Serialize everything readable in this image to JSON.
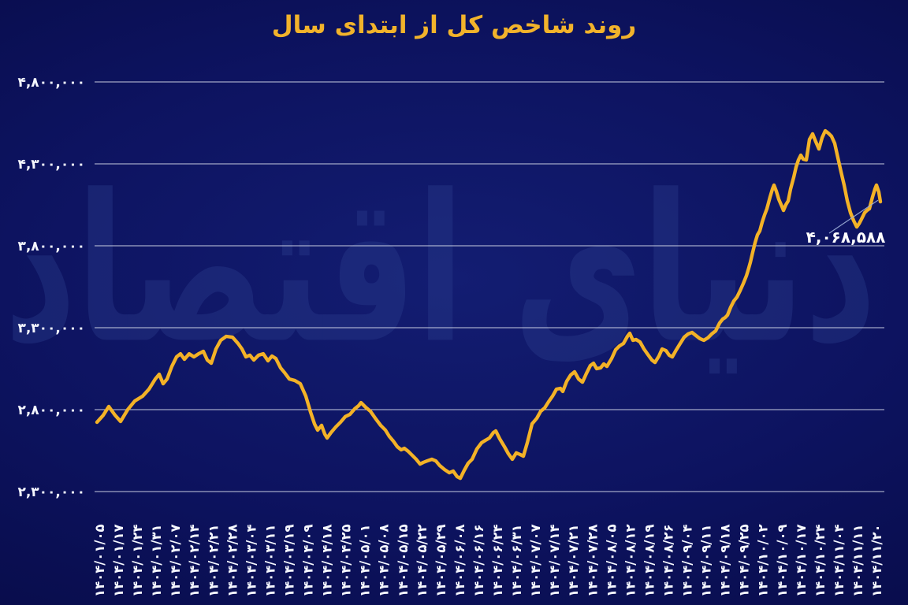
{
  "watermark": {
    "text": "دنیای اقتصاد"
  },
  "chart_data": {
    "type": "line",
    "title": "روند شاخص کل از ابتدای سال",
    "title_color": "#f2b32b",
    "background_color": "#0d1360",
    "line_color": "#f3b227",
    "grid_color": "#e8ecf5",
    "axis_label_color": "#f5f7ff",
    "watermark_color": "#2c3e8e",
    "grid": true,
    "legend_position": "none",
    "xlabel": "",
    "ylabel": "",
    "y_axis": {
      "min": 2300000,
      "max": 4800000,
      "tick_step": 500000,
      "ticks": [
        {
          "label": "۴,۸۰۰,۰۰۰",
          "value": 4800000
        },
        {
          "label": "۴,۳۰۰,۰۰۰",
          "value": 4300000
        },
        {
          "label": "۳,۸۰۰,۰۰۰",
          "value": 3800000
        },
        {
          "label": "۳,۳۰۰,۰۰۰",
          "value": 3300000
        },
        {
          "label": "۲,۸۰۰,۰۰۰",
          "value": 2800000
        },
        {
          "label": "۲,۳۰۰,۰۰۰",
          "value": 2300000
        }
      ]
    },
    "x_axis": {
      "tick_labels": [
        "۱۴۰۴/۰۱/۰۵",
        "۱۴۰۴/۰۱/۱۷",
        "۱۴۰۴/۰۱/۲۴",
        "۱۴۰۴/۰۱/۳۱",
        "۱۴۰۴/۰۲/۰۷",
        "۱۴۰۴/۰۲/۱۴",
        "۱۴۰۴/۰۲/۲۱",
        "۱۴۰۴/۰۲/۲۸",
        "۱۴۰۴/۰۳/۰۴",
        "۱۴۰۴/۰۳/۱۱",
        "۱۴۰۴/۰۳/۱۹",
        "۱۴۰۴/۰۴/۰۹",
        "۱۴۰۴/۰۴/۱۸",
        "۱۴۰۴/۰۴/۲۵",
        "۱۴۰۴/۰۵/۰۱",
        "۱۴۰۴/۰۵/۰۸",
        "۱۴۰۴/۰۵/۱۵",
        "۱۴۰۴/۰۵/۲۲",
        "۱۴۰۴/۰۵/۲۹",
        "۱۴۰۴/۰۶/۰۸",
        "۱۴۰۴/۰۶/۱۶",
        "۱۴۰۴/۰۶/۲۴",
        "۱۴۰۴/۰۶/۳۱",
        "۱۴۰۴/۰۷/۰۷",
        "۱۴۰۴/۰۷/۱۴",
        "۱۴۰۴/۰۷/۲۱",
        "۱۴۰۴/۰۷/۲۸",
        "۱۴۰۴/۰۸/۰۵",
        "۱۴۰۴/۰۸/۱۲",
        "۱۴۰۴/۰۸/۱۹",
        "۱۴۰۴/۰۸/۲۶",
        "۱۴۰۴/۰۹/۰۴",
        "۱۴۰۴/۰۹/۱۱",
        "۱۴۰۴/۰۹/۱۸",
        "۱۴۰۴/۰۹/۲۵",
        "۱۴۰۴/۱۰/۰۲",
        "۱۴۰۴/۱۰/۰۹",
        "۱۴۰۴/۱۰/۱۷",
        "۱۴۰۴/۱۰/۲۴",
        "۱۴۰۴/۱۱/۰۴",
        "۱۴۰۴/۱۱/۱۱",
        "۱۴۰۴/۱۱/۲۰"
      ]
    },
    "annotation": {
      "label": "۴,۰۶۸,۵۸۸",
      "value": 4068588
    },
    "series": [
      {
        "name": "شاخص کل",
        "points": [
          [
            0.003,
            2723000
          ],
          [
            0.011,
            2766000
          ],
          [
            0.018,
            2819000
          ],
          [
            0.026,
            2766000
          ],
          [
            0.033,
            2728000
          ],
          [
            0.042,
            2800000
          ],
          [
            0.051,
            2853000
          ],
          [
            0.061,
            2882000
          ],
          [
            0.069,
            2925000
          ],
          [
            0.077,
            2987000
          ],
          [
            0.082,
            3016000
          ],
          [
            0.087,
            2958000
          ],
          [
            0.092,
            2987000
          ],
          [
            0.098,
            3064000
          ],
          [
            0.104,
            3122000
          ],
          [
            0.109,
            3141000
          ],
          [
            0.114,
            3107000
          ],
          [
            0.12,
            3141000
          ],
          [
            0.126,
            3122000
          ],
          [
            0.132,
            3141000
          ],
          [
            0.138,
            3156000
          ],
          [
            0.143,
            3103000
          ],
          [
            0.148,
            3083000
          ],
          [
            0.154,
            3170000
          ],
          [
            0.16,
            3223000
          ],
          [
            0.167,
            3247000
          ],
          [
            0.175,
            3242000
          ],
          [
            0.182,
            3204000
          ],
          [
            0.187,
            3170000
          ],
          [
            0.192,
            3122000
          ],
          [
            0.197,
            3132000
          ],
          [
            0.202,
            3103000
          ],
          [
            0.208,
            3132000
          ],
          [
            0.214,
            3141000
          ],
          [
            0.22,
            3098000
          ],
          [
            0.225,
            3127000
          ],
          [
            0.23,
            3112000
          ],
          [
            0.236,
            3055000
          ],
          [
            0.241,
            3026000
          ],
          [
            0.247,
            2987000
          ],
          [
            0.254,
            2978000
          ],
          [
            0.261,
            2958000
          ],
          [
            0.268,
            2882000
          ],
          [
            0.274,
            2785000
          ],
          [
            0.279,
            2713000
          ],
          [
            0.283,
            2675000
          ],
          [
            0.288,
            2704000
          ],
          [
            0.292,
            2651000
          ],
          [
            0.295,
            2627000
          ],
          [
            0.3,
            2660000
          ],
          [
            0.306,
            2694000
          ],
          [
            0.312,
            2723000
          ],
          [
            0.318,
            2757000
          ],
          [
            0.324,
            2771000
          ],
          [
            0.33,
            2805000
          ],
          [
            0.335,
            2824000
          ],
          [
            0.338,
            2843000
          ],
          [
            0.344,
            2814000
          ],
          [
            0.35,
            2790000
          ],
          [
            0.357,
            2742000
          ],
          [
            0.363,
            2704000
          ],
          [
            0.369,
            2675000
          ],
          [
            0.374,
            2636000
          ],
          [
            0.379,
            2608000
          ],
          [
            0.384,
            2574000
          ],
          [
            0.389,
            2555000
          ],
          [
            0.393,
            2564000
          ],
          [
            0.398,
            2545000
          ],
          [
            0.403,
            2521000
          ],
          [
            0.408,
            2497000
          ],
          [
            0.413,
            2468000
          ],
          [
            0.417,
            2478000
          ],
          [
            0.422,
            2487000
          ],
          [
            0.428,
            2497000
          ],
          [
            0.433,
            2487000
          ],
          [
            0.438,
            2458000
          ],
          [
            0.444,
            2434000
          ],
          [
            0.45,
            2415000
          ],
          [
            0.455,
            2425000
          ],
          [
            0.46,
            2391000
          ],
          [
            0.464,
            2381000
          ],
          [
            0.469,
            2430000
          ],
          [
            0.474,
            2473000
          ],
          [
            0.479,
            2497000
          ],
          [
            0.485,
            2560000
          ],
          [
            0.491,
            2598000
          ],
          [
            0.496,
            2613000
          ],
          [
            0.501,
            2627000
          ],
          [
            0.506,
            2660000
          ],
          [
            0.509,
            2670000
          ],
          [
            0.514,
            2622000
          ],
          [
            0.52,
            2574000
          ],
          [
            0.525,
            2531000
          ],
          [
            0.53,
            2497000
          ],
          [
            0.535,
            2536000
          ],
          [
            0.54,
            2526000
          ],
          [
            0.544,
            2516000
          ],
          [
            0.549,
            2598000
          ],
          [
            0.555,
            2713000
          ],
          [
            0.561,
            2747000
          ],
          [
            0.566,
            2790000
          ],
          [
            0.571,
            2810000
          ],
          [
            0.576,
            2848000
          ],
          [
            0.581,
            2882000
          ],
          [
            0.586,
            2925000
          ],
          [
            0.591,
            2930000
          ],
          [
            0.594,
            2911000
          ],
          [
            0.599,
            2973000
          ],
          [
            0.604,
            3011000
          ],
          [
            0.609,
            3031000
          ],
          [
            0.614,
            2987000
          ],
          [
            0.619,
            2968000
          ],
          [
            0.624,
            3021000
          ],
          [
            0.629,
            3069000
          ],
          [
            0.633,
            3083000
          ],
          [
            0.637,
            3050000
          ],
          [
            0.642,
            3055000
          ],
          [
            0.646,
            3079000
          ],
          [
            0.65,
            3064000
          ],
          [
            0.656,
            3112000
          ],
          [
            0.661,
            3165000
          ],
          [
            0.666,
            3189000
          ],
          [
            0.671,
            3204000
          ],
          [
            0.676,
            3247000
          ],
          [
            0.679,
            3266000
          ],
          [
            0.683,
            3223000
          ],
          [
            0.687,
            3228000
          ],
          [
            0.692,
            3213000
          ],
          [
            0.697,
            3170000
          ],
          [
            0.702,
            3136000
          ],
          [
            0.707,
            3103000
          ],
          [
            0.711,
            3088000
          ],
          [
            0.716,
            3127000
          ],
          [
            0.72,
            3170000
          ],
          [
            0.725,
            3160000
          ],
          [
            0.729,
            3132000
          ],
          [
            0.733,
            3122000
          ],
          [
            0.738,
            3165000
          ],
          [
            0.743,
            3204000
          ],
          [
            0.748,
            3242000
          ],
          [
            0.753,
            3262000
          ],
          [
            0.758,
            3271000
          ],
          [
            0.763,
            3252000
          ],
          [
            0.768,
            3233000
          ],
          [
            0.773,
            3223000
          ],
          [
            0.778,
            3238000
          ],
          [
            0.783,
            3262000
          ],
          [
            0.788,
            3281000
          ],
          [
            0.793,
            3329000
          ],
          [
            0.797,
            3353000
          ],
          [
            0.8,
            3362000
          ],
          [
            0.803,
            3377000
          ],
          [
            0.807,
            3425000
          ],
          [
            0.811,
            3463000
          ],
          [
            0.815,
            3487000
          ],
          [
            0.819,
            3526000
          ],
          [
            0.823,
            3569000
          ],
          [
            0.827,
            3617000
          ],
          [
            0.83,
            3665000
          ],
          [
            0.832,
            3699000
          ],
          [
            0.835,
            3761000
          ],
          [
            0.838,
            3819000
          ],
          [
            0.841,
            3867000
          ],
          [
            0.844,
            3891000
          ],
          [
            0.847,
            3944000
          ],
          [
            0.85,
            3988000
          ],
          [
            0.853,
            4026000
          ],
          [
            0.857,
            4098000
          ],
          [
            0.86,
            4146000
          ],
          [
            0.862,
            4170000
          ],
          [
            0.865,
            4132000
          ],
          [
            0.868,
            4084000
          ],
          [
            0.872,
            4040000
          ],
          [
            0.874,
            4016000
          ],
          [
            0.877,
            4050000
          ],
          [
            0.88,
            4074000
          ],
          [
            0.883,
            4146000
          ],
          [
            0.887,
            4218000
          ],
          [
            0.89,
            4281000
          ],
          [
            0.893,
            4324000
          ],
          [
            0.896,
            4353000
          ],
          [
            0.899,
            4329000
          ],
          [
            0.903,
            4324000
          ],
          [
            0.907,
            4449000
          ],
          [
            0.911,
            4483000
          ],
          [
            0.915,
            4435000
          ],
          [
            0.919,
            4391000
          ],
          [
            0.923,
            4459000
          ],
          [
            0.927,
            4502000
          ],
          [
            0.931,
            4487000
          ],
          [
            0.935,
            4468000
          ],
          [
            0.939,
            4425000
          ],
          [
            0.943,
            4338000
          ],
          [
            0.947,
            4252000
          ],
          [
            0.951,
            4170000
          ],
          [
            0.955,
            4074000
          ],
          [
            0.959,
            4002000
          ],
          [
            0.963,
            3954000
          ],
          [
            0.967,
            3915000
          ],
          [
            0.97,
            3935000
          ],
          [
            0.973,
            3963000
          ],
          [
            0.977,
            4002000
          ],
          [
            0.98,
            4016000
          ],
          [
            0.983,
            4026000
          ],
          [
            0.987,
            4098000
          ],
          [
            0.99,
            4146000
          ],
          [
            0.992,
            4170000
          ],
          [
            0.995,
            4127000
          ],
          [
            0.997,
            4068588
          ]
        ]
      }
    ]
  }
}
